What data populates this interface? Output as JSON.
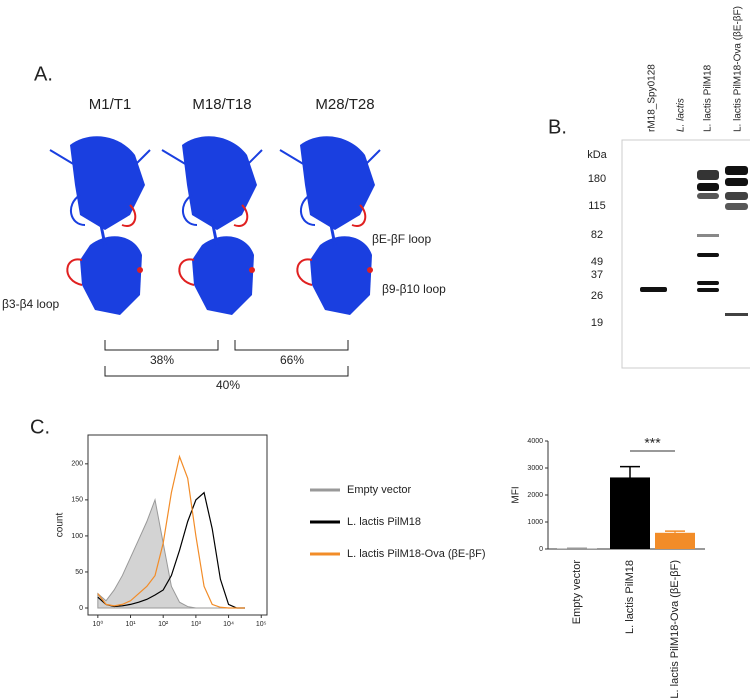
{
  "panel_a": {
    "label": "A.",
    "strains": [
      "M1/T1",
      "M18/T18",
      "M28/T28"
    ],
    "loops": [
      "βE-βF loop",
      "β9-β10 loop",
      "β3-β4 loop"
    ],
    "identities": [
      "38%",
      "66%",
      "40%"
    ]
  },
  "panel_b": {
    "label": "B.",
    "lanes": [
      "rM18_Spy0128",
      "L. lactis",
      "L. lactis PilM18",
      "L. lactis PilM18-Ova (βE-βF)"
    ],
    "unit": "kDa",
    "markers": [
      "180",
      "115",
      "82",
      "49",
      "37",
      "26",
      "19"
    ]
  },
  "panel_c": {
    "label": "C."
  },
  "chart_data": [
    {
      "type": "line",
      "ylabel": "count",
      "log_x": true,
      "x": [
        1,
        1.78,
        3.16,
        5.62,
        10,
        17.8,
        31.6,
        56.2,
        100,
        178,
        316,
        562,
        1000,
        1780,
        3160,
        5620,
        10000,
        17800,
        31600
      ],
      "xlim": [
        0.5,
        150000
      ],
      "xticks": [
        {
          "value": 1,
          "label": "10⁰"
        },
        {
          "value": 10,
          "label": "10¹"
        },
        {
          "value": 100,
          "label": "10²"
        },
        {
          "value": 1000,
          "label": "10³"
        },
        {
          "value": 10000,
          "label": "10⁴"
        },
        {
          "value": 100000,
          "label": "10⁵"
        }
      ],
      "ylim": [
        0,
        240
      ],
      "yticks": [
        0,
        50,
        100,
        150,
        200
      ],
      "series": [
        {
          "name": "Empty vector",
          "color": "#999999",
          "fill": "#d3d3d3",
          "values": [
            20,
            10,
            25,
            45,
            70,
            95,
            120,
            150,
            90,
            30,
            8,
            2,
            0,
            0,
            0,
            0,
            0,
            0,
            0
          ]
        },
        {
          "name": "L. lactis PilM18",
          "color": "#000000",
          "values": [
            15,
            5,
            2,
            3,
            5,
            8,
            12,
            18,
            25,
            45,
            80,
            120,
            150,
            160,
            110,
            40,
            5,
            0,
            0
          ]
        },
        {
          "name": "L. lactis PilM18-Ova (βE-βF)",
          "color": "#f28c28",
          "values": [
            20,
            5,
            3,
            5,
            10,
            20,
            30,
            45,
            90,
            160,
            210,
            180,
            100,
            30,
            5,
            1,
            0,
            0,
            0
          ]
        }
      ]
    },
    {
      "type": "bar",
      "ylabel": "MFI",
      "annotation": "***",
      "categories": [
        "Empty vector",
        "L. lactis PilM18",
        "L. lactis PilM18-Ova (βE-βF)"
      ],
      "values": [
        20,
        2650,
        600
      ],
      "errors": [
        10,
        400,
        60
      ],
      "colors": [
        "#999999",
        "#000000",
        "#f28c28"
      ],
      "ylim": [
        0,
        4000
      ],
      "yticks": [
        0,
        1000,
        2000,
        3000,
        4000
      ]
    }
  ]
}
